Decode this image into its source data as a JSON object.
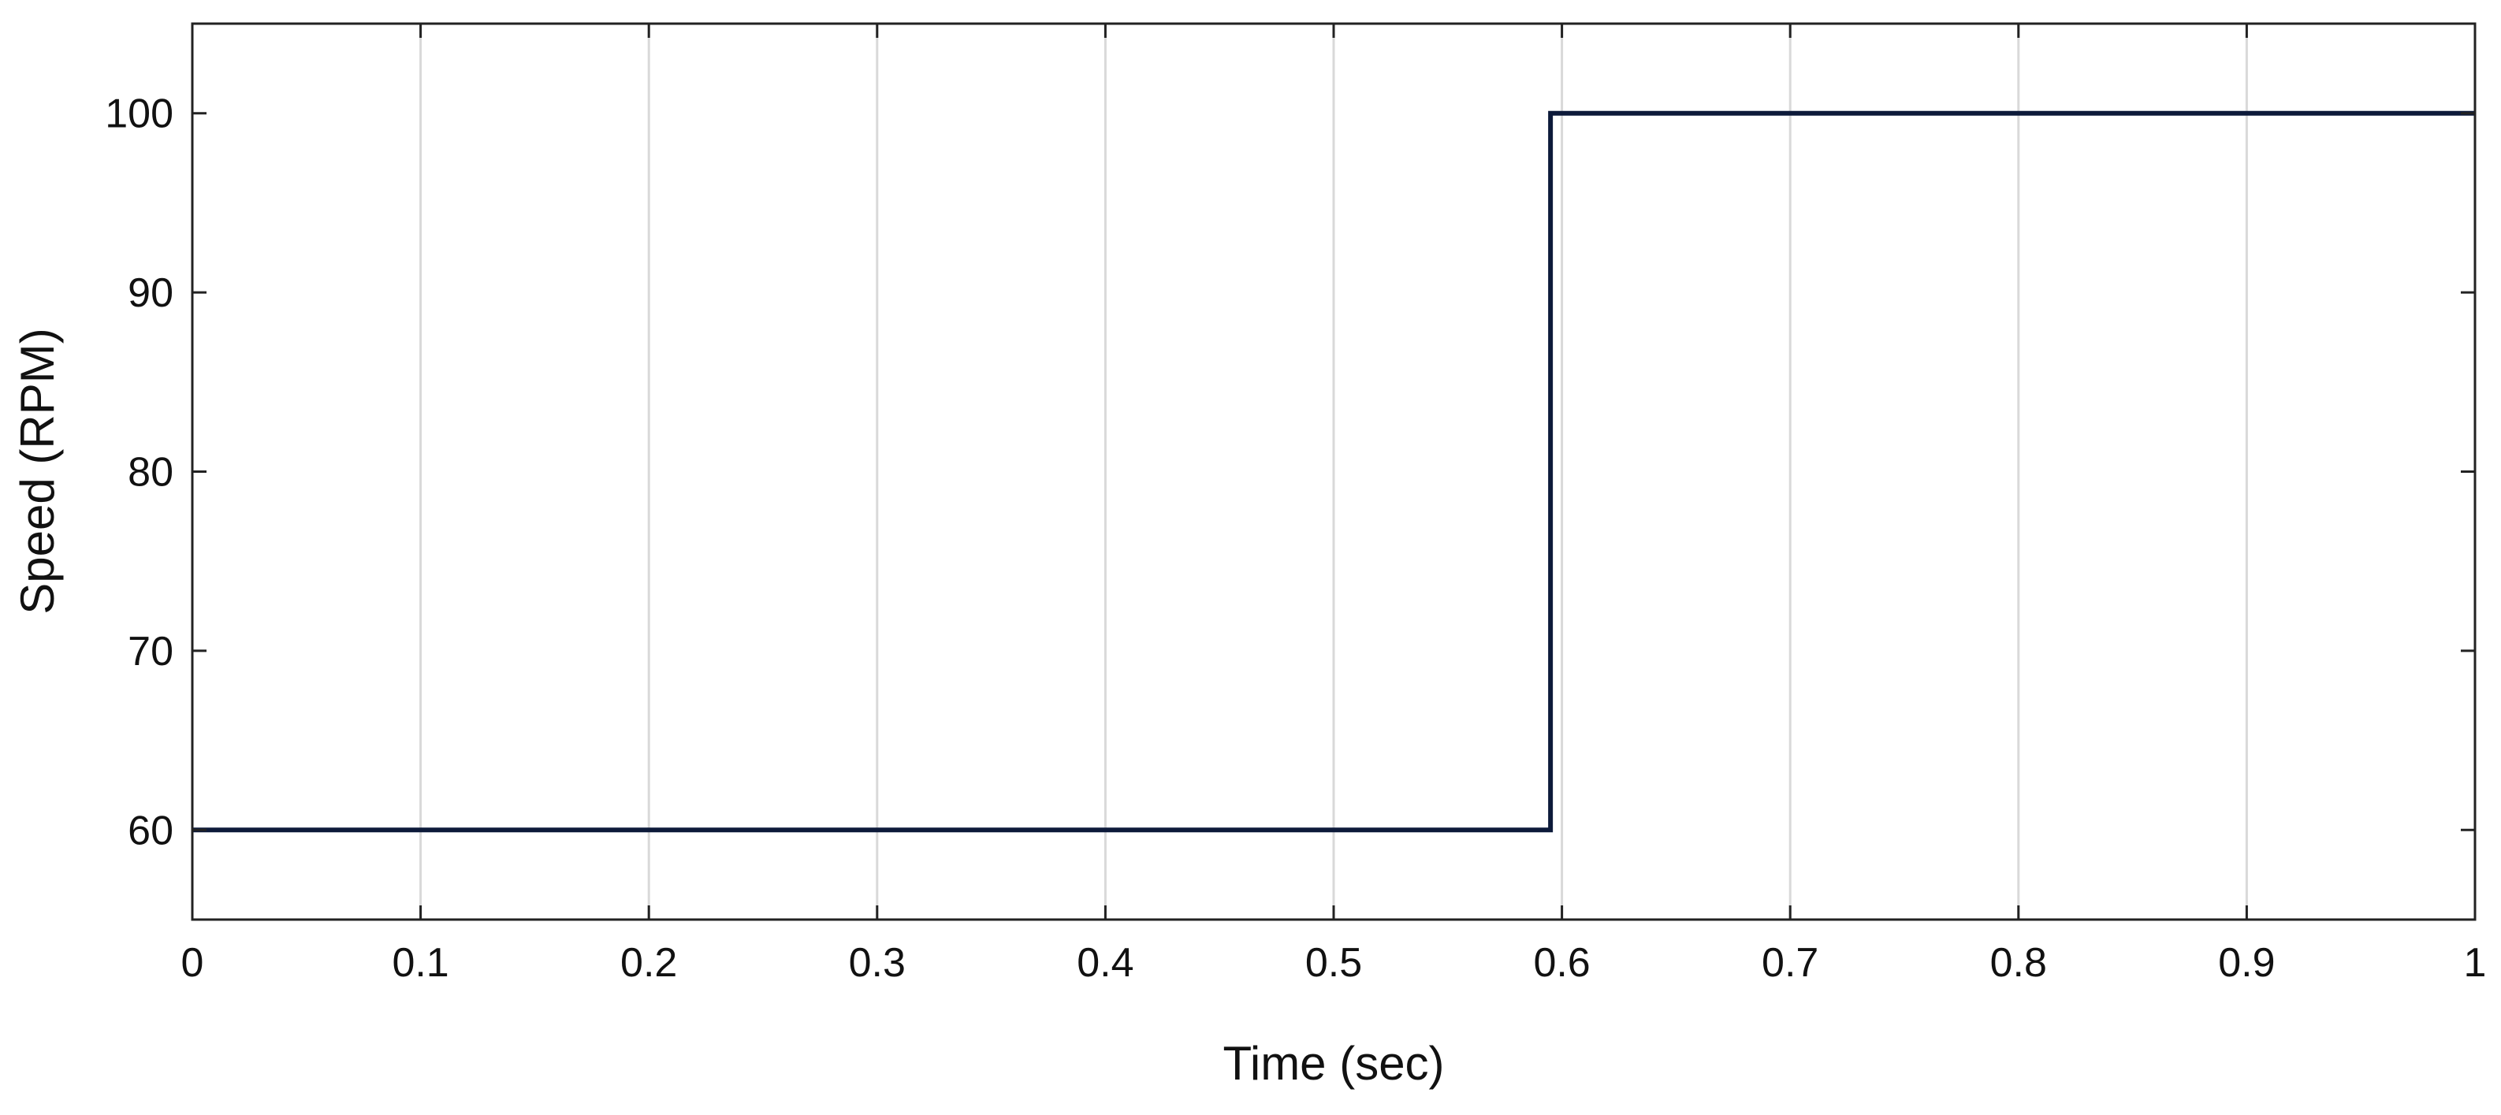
{
  "chart_data": {
    "type": "line",
    "title": "",
    "xlabel": "Time (sec)",
    "ylabel": "Speed (RPM)",
    "xlim": [
      0,
      1
    ],
    "ylim": [
      55,
      105
    ],
    "x_ticks": [
      "0",
      "0.1",
      "0.2",
      "0.3",
      "0.4",
      "0.5",
      "0.6",
      "0.7",
      "0.8",
      "0.9",
      "1"
    ],
    "y_ticks": [
      "60",
      "70",
      "80",
      "90",
      "100"
    ],
    "grid": "vertical",
    "legend": "none",
    "series": [
      {
        "color": "#0d1a3a",
        "x": [
          0,
          0.595,
          0.595,
          1
        ],
        "y": [
          60,
          60,
          100,
          100
        ]
      }
    ]
  }
}
